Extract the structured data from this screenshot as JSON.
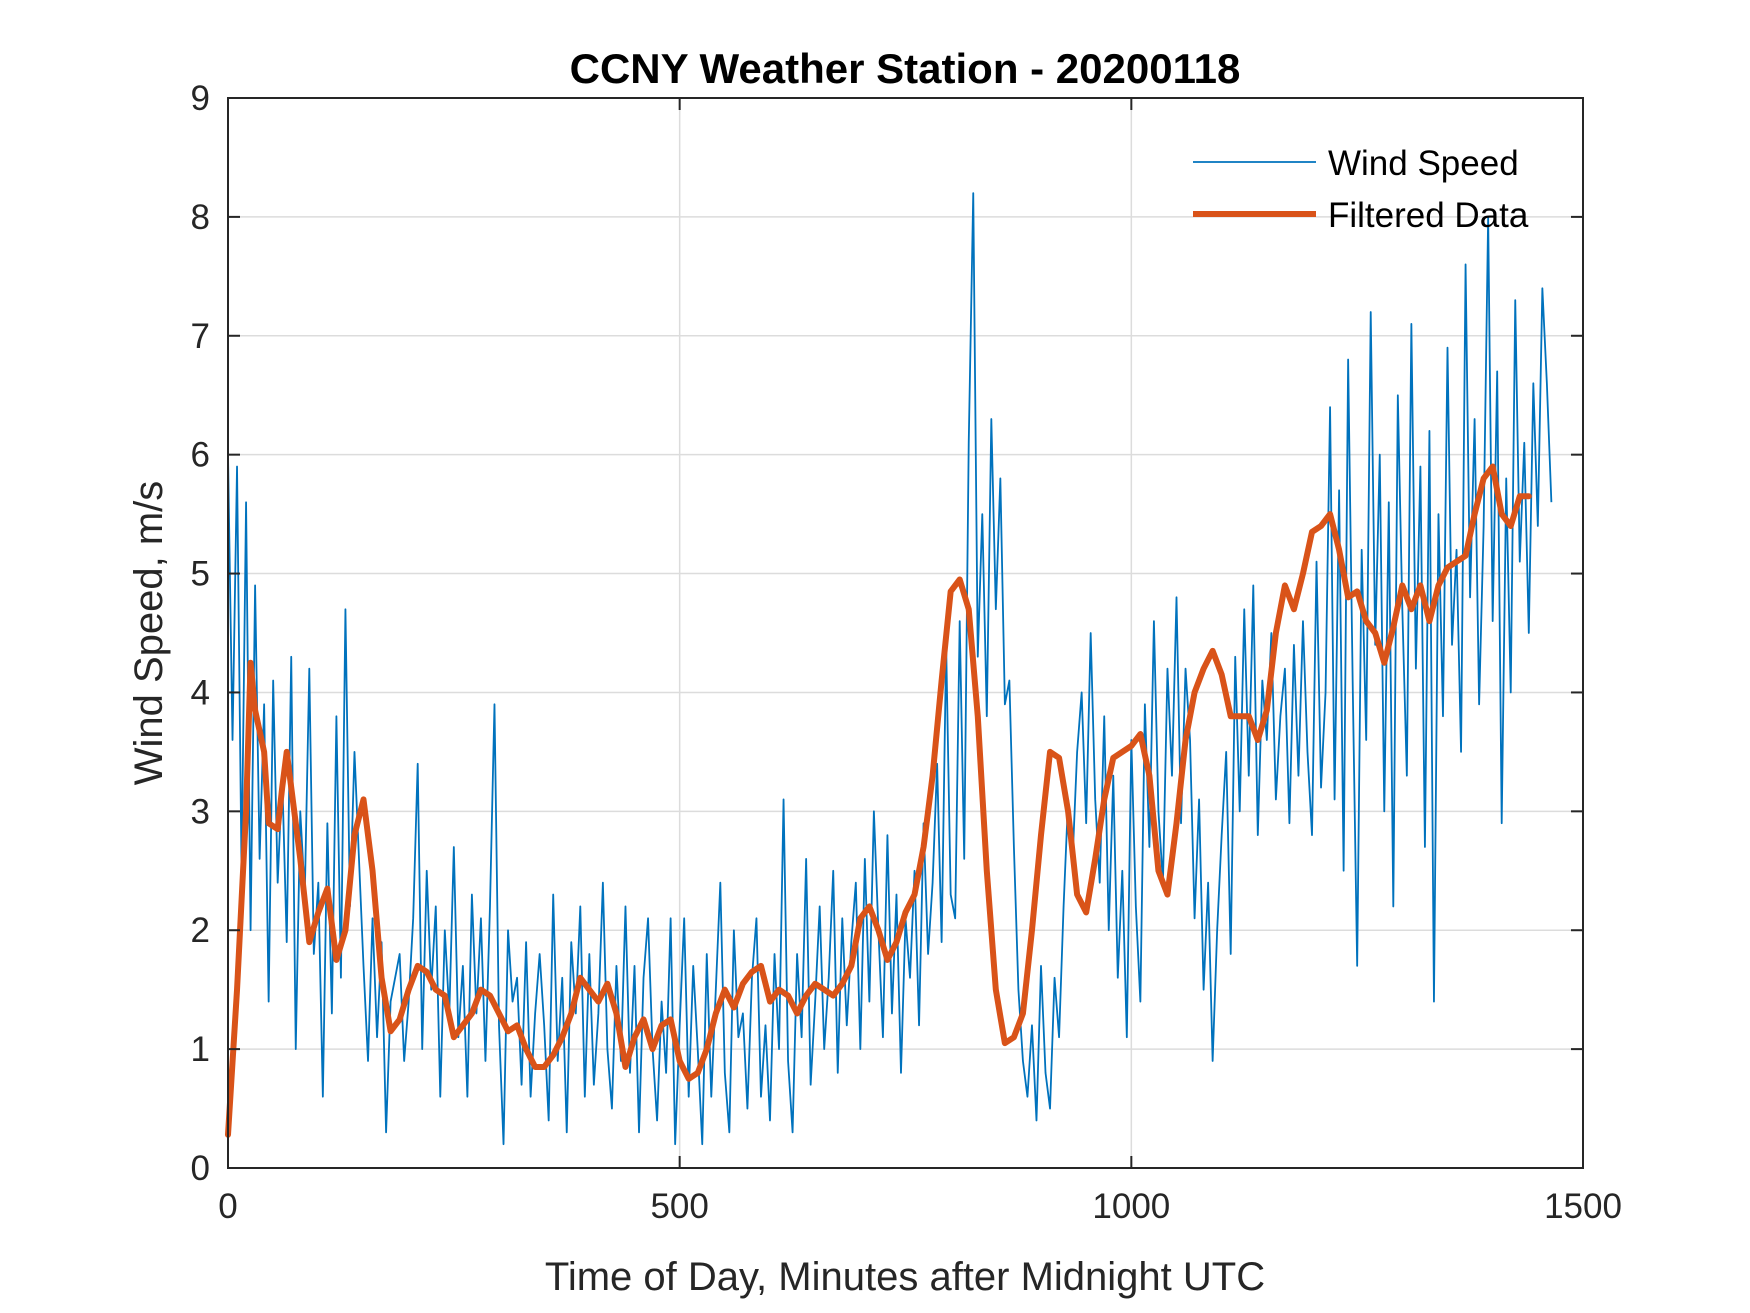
{
  "chart_data": {
    "type": "line",
    "title": "CCNY Weather Station - 20200118",
    "xlabel": "Time of Day, Minutes after Midnight UTC",
    "ylabel": "Wind Speed, m/s",
    "xlim": [
      0,
      1500
    ],
    "ylim": [
      0,
      9
    ],
    "xticks": [
      0,
      500,
      1000,
      1500
    ],
    "xtick_labels": [
      "0",
      "500",
      "1000",
      "1500"
    ],
    "yticks": [
      0,
      1,
      2,
      3,
      4,
      5,
      6,
      7,
      8,
      9
    ],
    "ytick_labels": [
      "0",
      "1",
      "2",
      "3",
      "4",
      "5",
      "6",
      "7",
      "8",
      "9"
    ],
    "grid": true,
    "legend": {
      "placement": "top-right",
      "entries": [
        "Wind Speed",
        "Filtered Data"
      ]
    },
    "series": [
      {
        "name": "Wind Speed",
        "color": "#0072BD",
        "x_step": 5,
        "x_start": 0,
        "values": [
          6.0,
          3.6,
          5.9,
          2.5,
          5.6,
          2.0,
          4.9,
          2.6,
          3.9,
          1.4,
          4.1,
          2.4,
          3.3,
          1.9,
          4.3,
          1.0,
          3.0,
          2.3,
          4.2,
          1.8,
          2.4,
          0.6,
          2.9,
          1.3,
          3.8,
          1.6,
          4.7,
          2.2,
          3.5,
          2.6,
          1.7,
          0.9,
          2.1,
          1.1,
          1.9,
          0.3,
          1.4,
          1.6,
          1.8,
          0.9,
          1.4,
          2.1,
          3.4,
          1.0,
          2.5,
          1.5,
          2.2,
          0.6,
          2.0,
          1.3,
          2.7,
          1.1,
          1.7,
          0.6,
          2.3,
          1.3,
          2.1,
          0.9,
          2.2,
          3.9,
          1.2,
          0.2,
          2.0,
          1.4,
          1.6,
          0.7,
          1.9,
          0.6,
          1.3,
          1.8,
          1.2,
          0.4,
          2.3,
          0.9,
          1.6,
          0.3,
          1.9,
          1.3,
          2.2,
          0.6,
          1.8,
          0.7,
          1.3,
          2.4,
          1.0,
          0.5,
          1.7,
          0.9,
          2.2,
          0.8,
          1.7,
          0.3,
          1.6,
          2.1,
          1.0,
          0.4,
          1.4,
          0.8,
          2.1,
          0.2,
          1.2,
          2.1,
          0.6,
          1.7,
          1.0,
          0.2,
          1.8,
          0.6,
          1.5,
          2.4,
          0.8,
          0.3,
          2.0,
          1.1,
          1.3,
          0.5,
          1.6,
          2.1,
          0.6,
          1.2,
          0.4,
          1.8,
          1.0,
          3.1,
          0.9,
          0.3,
          1.8,
          1.1,
          2.6,
          0.7,
          1.4,
          2.2,
          1.0,
          1.6,
          2.5,
          0.8,
          2.1,
          1.2,
          1.9,
          2.4,
          1.0,
          2.6,
          1.4,
          3.0,
          2.0,
          1.1,
          2.8,
          1.3,
          2.3,
          0.8,
          2.1,
          1.6,
          2.5,
          1.2,
          2.9,
          1.8,
          2.4,
          3.4,
          1.9,
          4.4,
          2.3,
          2.1,
          4.6,
          2.6,
          6.1,
          8.2,
          4.3,
          5.5,
          3.8,
          6.3,
          4.7,
          5.8,
          3.9,
          4.1,
          2.7,
          1.5,
          0.9,
          0.6,
          1.2,
          0.4,
          1.7,
          0.8,
          0.5,
          1.6,
          1.1,
          2.2,
          3.1,
          2.6,
          3.5,
          4.0,
          2.9,
          4.5,
          3.1,
          2.4,
          3.8,
          2.0,
          3.3,
          1.6,
          2.5,
          1.1,
          3.6,
          2.2,
          1.4,
          3.9,
          2.7,
          4.6,
          3.0,
          2.4,
          4.2,
          3.3,
          4.8,
          2.9,
          4.2,
          3.6,
          2.1,
          3.1,
          1.5,
          2.4,
          0.9,
          2.0,
          2.8,
          3.5,
          1.8,
          4.3,
          3.0,
          4.7,
          3.3,
          4.9,
          2.8,
          4.1,
          3.6,
          4.5,
          3.1,
          3.8,
          4.2,
          2.9,
          4.4,
          3.3,
          4.6,
          3.5,
          2.8,
          5.1,
          3.2,
          4.0,
          6.4,
          3.1,
          5.7,
          2.5,
          6.8,
          4.1,
          1.7,
          5.2,
          3.6,
          7.2,
          4.4,
          6.0,
          3.0,
          5.6,
          2.2,
          6.5,
          4.7,
          3.3,
          7.1,
          4.2,
          5.9,
          2.7,
          6.2,
          1.4,
          5.5,
          3.8,
          6.9,
          4.4,
          5.2,
          3.5,
          7.6,
          4.8,
          6.3,
          3.9,
          5.4,
          8.0,
          4.6,
          6.7,
          2.9,
          5.8,
          4.0,
          7.3,
          5.1,
          6.1,
          4.5,
          6.6,
          5.4,
          7.4,
          6.6,
          5.6
        ]
      },
      {
        "name": "Filtered Data",
        "color": "#D95319",
        "x": [
          0,
          10,
          20,
          25,
          30,
          40,
          45,
          55,
          60,
          65,
          70,
          80,
          90,
          100,
          110,
          120,
          130,
          140,
          150,
          160,
          170,
          180,
          190,
          200,
          210,
          220,
          230,
          240,
          250,
          260,
          270,
          280,
          290,
          300,
          310,
          320,
          330,
          340,
          350,
          360,
          370,
          380,
          390,
          400,
          410,
          420,
          430,
          440,
          450,
          460,
          470,
          480,
          490,
          500,
          510,
          520,
          530,
          540,
          550,
          560,
          570,
          580,
          590,
          600,
          610,
          620,
          630,
          640,
          650,
          660,
          670,
          680,
          690,
          700,
          710,
          720,
          730,
          740,
          750,
          760,
          770,
          780,
          790,
          800,
          810,
          820,
          830,
          840,
          850,
          860,
          870,
          880,
          890,
          900,
          910,
          920,
          930,
          940,
          950,
          960,
          970,
          980,
          990,
          1000,
          1010,
          1020,
          1030,
          1040,
          1050,
          1060,
          1070,
          1080,
          1090,
          1100,
          1110,
          1120,
          1130,
          1140,
          1150,
          1160,
          1170,
          1180,
          1190,
          1200,
          1210,
          1220,
          1230,
          1240,
          1250,
          1260,
          1270,
          1280,
          1290,
          1300,
          1310,
          1320,
          1330,
          1340,
          1350,
          1360,
          1370,
          1380,
          1390,
          1400,
          1410,
          1420,
          1430,
          1440
        ],
        "values": [
          0.28,
          1.5,
          3.0,
          4.25,
          3.85,
          3.5,
          2.9,
          2.85,
          3.2,
          3.5,
          3.2,
          2.6,
          1.9,
          2.15,
          2.35,
          1.75,
          2.0,
          2.8,
          3.1,
          2.5,
          1.6,
          1.15,
          1.25,
          1.5,
          1.7,
          1.65,
          1.5,
          1.45,
          1.1,
          1.2,
          1.3,
          1.5,
          1.45,
          1.3,
          1.15,
          1.2,
          1.0,
          0.85,
          0.85,
          0.95,
          1.1,
          1.3,
          1.6,
          1.5,
          1.4,
          1.55,
          1.3,
          0.85,
          1.1,
          1.25,
          1.0,
          1.2,
          1.25,
          0.9,
          0.75,
          0.8,
          1.0,
          1.3,
          1.5,
          1.35,
          1.55,
          1.65,
          1.7,
          1.4,
          1.5,
          1.45,
          1.3,
          1.45,
          1.55,
          1.5,
          1.45,
          1.55,
          1.7,
          2.1,
          2.2,
          2.0,
          1.75,
          1.9,
          2.15,
          2.3,
          2.7,
          3.3,
          4.1,
          4.85,
          4.95,
          4.7,
          3.8,
          2.5,
          1.5,
          1.05,
          1.1,
          1.3,
          2.0,
          2.8,
          3.5,
          3.45,
          3.0,
          2.3,
          2.15,
          2.6,
          3.1,
          3.45,
          3.5,
          3.55,
          3.65,
          3.3,
          2.5,
          2.3,
          2.9,
          3.6,
          4.0,
          4.2,
          4.35,
          4.15,
          3.8,
          3.8,
          3.8,
          3.6,
          3.85,
          4.5,
          4.9,
          4.7,
          5.0,
          5.35,
          5.4,
          5.5,
          5.2,
          4.8,
          4.85,
          4.6,
          4.5,
          4.25,
          4.55,
          4.9,
          4.7,
          4.9,
          4.6,
          4.9,
          5.05,
          5.1,
          5.15,
          5.5,
          5.8,
          5.9,
          5.5,
          5.4,
          5.65,
          5.65
        ]
      }
    ]
  }
}
